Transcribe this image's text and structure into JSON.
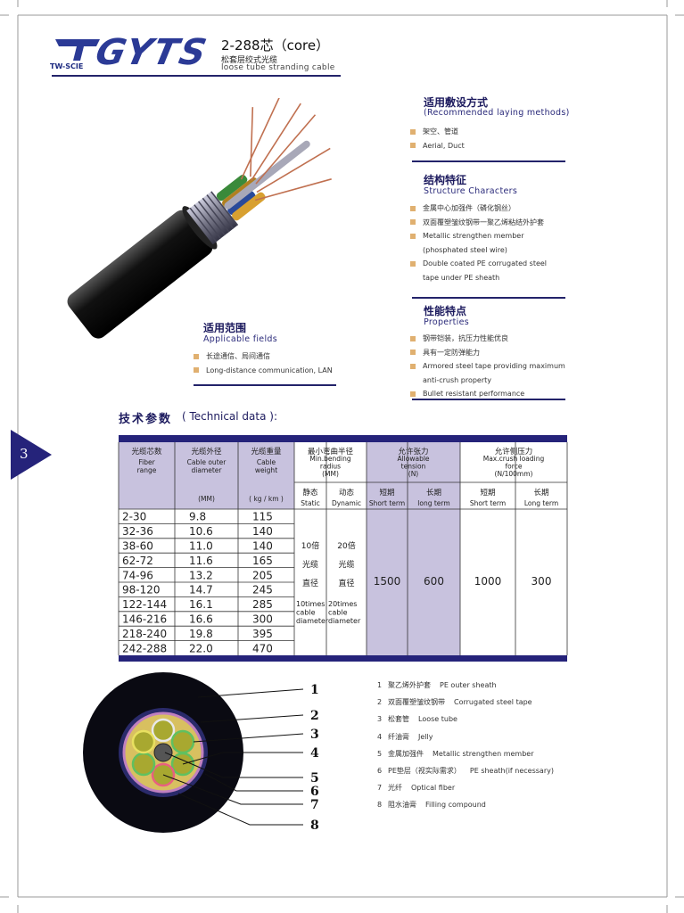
{
  "header": {
    "logo_abbr": "TW-SCIE",
    "logo": "GYTS",
    "title": "2-288芯（core）",
    "subtitle_cn": "松套层绞式光缆",
    "subtitle_en": "loose tube stranding cable"
  },
  "page_number": "3",
  "laying": {
    "title_cn": "适用敷设方式",
    "title_en": "(Recommended laying methods)",
    "items": [
      [
        "架空、管道"
      ],
      [
        "Aerial, Duct"
      ]
    ]
  },
  "structure": {
    "title_cn": "结构特征",
    "title_en": "Structure Characters",
    "items": [
      [
        "金属中心加强件（磷化钢丝）"
      ],
      [
        "双面覆塑皱纹钢带一聚乙烯粘结外护套"
      ],
      [
        "Metallic strengthen member",
        "(phosphated steel wire)"
      ],
      [
        "Double coated PE corrugated steel",
        "tape under PE sheath"
      ]
    ]
  },
  "properties": {
    "title_cn": "性能特点",
    "title_en": "Properties",
    "items": [
      [
        "钢带铠装，抗压力性能优良"
      ],
      [
        "具有一定防弹能力"
      ],
      [
        "Armored steel tape providing maximum",
        "anti-crush property"
      ],
      [
        "Bullet resistant performance"
      ]
    ]
  },
  "applicable": {
    "title_cn": "适用范围",
    "title_en": "Applicable fields",
    "items": [
      [
        "长途通信、局间通信"
      ],
      [
        "Long-distance communication, LAN"
      ]
    ]
  },
  "technical": {
    "title_cn": "技术参数",
    "title_en": "( Technical data ):",
    "table": {
      "columns": [
        {
          "cn": "光缆芯数",
          "en": [
            "Fiber",
            "range"
          ]
        },
        {
          "cn": "光缆外径",
          "en": [
            "Cable outer",
            "diameter"
          ],
          "unit": "(MM)"
        },
        {
          "cn": "光缆重量",
          "en": [
            "Cable",
            "weight"
          ],
          "unit": "( kg / km )"
        }
      ],
      "groups": [
        {
          "cn": "最小弯曲半径",
          "en": [
            "Min.bending",
            "radius",
            "(MM)"
          ],
          "sub": [
            {
              "cn": "静态",
              "en": "Static"
            },
            {
              "cn": "动态",
              "en": "Dynamic"
            }
          ]
        },
        {
          "cn": "允许张力",
          "en": [
            "Allowable",
            "tension",
            "(N)"
          ],
          "sub": [
            {
              "cn": "短期",
              "en": "Short term"
            },
            {
              "cn": "长期",
              "en": "long term"
            }
          ]
        },
        {
          "cn": "允许侧压力",
          "en": [
            "Max.crush loading",
            "force",
            "(N/100mm)"
          ],
          "sub": [
            {
              "cn": "短期",
              "en": "Short term"
            },
            {
              "cn": "长期",
              "en": "Long term"
            }
          ]
        }
      ],
      "rows": [
        [
          "2-30",
          "9.8",
          "115"
        ],
        [
          "32-36",
          "10.6",
          "140"
        ],
        [
          "38-60",
          "11.0",
          "140"
        ],
        [
          "62-72",
          "11.6",
          "165"
        ],
        [
          "74-96",
          "13.2",
          "205"
        ],
        [
          "98-120",
          "14.7",
          "245"
        ],
        [
          "122-144",
          "16.1",
          "285"
        ],
        [
          "146-216",
          "16.6",
          "300"
        ],
        [
          "218-240",
          "19.8",
          "395"
        ],
        [
          "242-288",
          "22.0",
          "470"
        ]
      ],
      "merged": [
        {
          "cn": [
            "10倍",
            "光缆",
            "直径"
          ],
          "en": [
            "10times",
            "cable",
            "diameter"
          ]
        },
        {
          "cn": [
            "20倍",
            "光缆",
            "直径"
          ],
          "en": [
            "20times",
            "cable",
            "diameter"
          ]
        },
        {
          "value": "1500"
        },
        {
          "value": "600"
        },
        {
          "value": "1000"
        },
        {
          "value": "300"
        }
      ]
    }
  },
  "diagram": {
    "callouts": [
      "1",
      "2",
      "3",
      "4",
      "5",
      "6",
      "7",
      "8"
    ],
    "legend": [
      {
        "number": "1",
        "cn": "聚乙烯外护套",
        "en": "PE outer sheath"
      },
      {
        "number": "2",
        "cn": "双面覆塑皱纹钢带",
        "en": "Corrugated steel tape"
      },
      {
        "number": "3",
        "cn": "松套管",
        "en": "Loose tube"
      },
      {
        "number": "4",
        "cn": "纤油膏",
        "en": "Jelly"
      },
      {
        "number": "5",
        "cn": "金属加强件",
        "en": "Metallic strengthen member"
      },
      {
        "number": "6",
        "cn": "PE垫层（视实际需求）",
        "en": "PE sheath(if necessary)"
      },
      {
        "number": "7",
        "cn": "光纤",
        "en": "Optical fiber"
      },
      {
        "number": "8",
        "cn": "阻水油膏",
        "en": "Filling compound"
      }
    ]
  }
}
